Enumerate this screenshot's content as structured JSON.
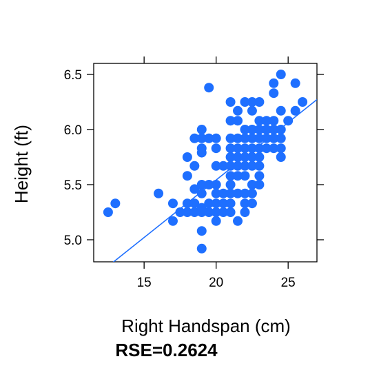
{
  "chart_data": {
    "type": "scatter",
    "xlabel": "Right Handspan (cm)",
    "ylabel": "Height (ft)",
    "xlim": [
      11.5,
      27.0
    ],
    "ylim": [
      4.8,
      6.6
    ],
    "xticks": [
      15,
      20,
      25
    ],
    "yticks": [
      5.0,
      5.5,
      6.0,
      6.5
    ],
    "ytick_labels": [
      "5.0",
      "5.5",
      "6.0",
      "6.5"
    ],
    "grid": false,
    "point_color": "#1E6FFF",
    "line_color": "#1E6FFF",
    "fit_line": {
      "x": [
        12.0,
        27.0
      ],
      "y": [
        4.708,
        6.272
      ]
    },
    "points": [
      [
        12.5,
        5.25
      ],
      [
        13.0,
        5.33
      ],
      [
        16.0,
        5.42
      ],
      [
        17.0,
        5.33
      ],
      [
        17.0,
        5.17
      ],
      [
        17.5,
        5.25
      ],
      [
        18.0,
        5.75
      ],
      [
        18.0,
        5.58
      ],
      [
        18.0,
        5.33
      ],
      [
        18.0,
        5.25
      ],
      [
        18.5,
        5.92
      ],
      [
        18.5,
        5.67
      ],
      [
        18.5,
        5.46
      ],
      [
        18.5,
        5.33
      ],
      [
        18.5,
        5.25
      ],
      [
        19.0,
        6.0
      ],
      [
        19.0,
        5.92
      ],
      [
        19.0,
        5.83
      ],
      [
        19.0,
        5.79
      ],
      [
        19.0,
        5.5
      ],
      [
        19.0,
        5.42
      ],
      [
        19.0,
        5.29
      ],
      [
        19.0,
        5.25
      ],
      [
        19.0,
        5.08
      ],
      [
        19.0,
        4.92
      ],
      [
        19.5,
        6.38
      ],
      [
        19.5,
        5.92
      ],
      [
        19.5,
        5.5
      ],
      [
        19.5,
        5.33
      ],
      [
        19.5,
        5.25
      ],
      [
        20.0,
        5.92
      ],
      [
        20.0,
        5.83
      ],
      [
        20.0,
        5.67
      ],
      [
        20.0,
        5.5
      ],
      [
        20.0,
        5.42
      ],
      [
        20.0,
        5.33
      ],
      [
        20.0,
        5.25
      ],
      [
        20.0,
        5.17
      ],
      [
        20.5,
        5.67
      ],
      [
        20.5,
        5.42
      ],
      [
        20.5,
        5.33
      ],
      [
        20.5,
        5.25
      ],
      [
        21.0,
        6.25
      ],
      [
        21.0,
        6.08
      ],
      [
        21.0,
        5.92
      ],
      [
        21.0,
        5.83
      ],
      [
        21.0,
        5.75
      ],
      [
        21.0,
        5.67
      ],
      [
        21.0,
        5.58
      ],
      [
        21.0,
        5.5
      ],
      [
        21.0,
        5.42
      ],
      [
        21.0,
        5.33
      ],
      [
        21.0,
        5.25
      ],
      [
        21.5,
        6.17
      ],
      [
        21.5,
        6.08
      ],
      [
        21.5,
        5.92
      ],
      [
        21.5,
        5.83
      ],
      [
        21.5,
        5.75
      ],
      [
        21.5,
        5.67
      ],
      [
        21.5,
        5.58
      ],
      [
        21.5,
        5.42
      ],
      [
        21.5,
        5.17
      ],
      [
        22.0,
        6.25
      ],
      [
        22.0,
        6.0
      ],
      [
        22.0,
        5.92
      ],
      [
        22.0,
        5.83
      ],
      [
        22.0,
        5.75
      ],
      [
        22.0,
        5.67
      ],
      [
        22.0,
        5.58
      ],
      [
        22.0,
        5.42
      ],
      [
        22.0,
        5.33
      ],
      [
        22.0,
        5.25
      ],
      [
        22.5,
        6.25
      ],
      [
        22.5,
        6.17
      ],
      [
        22.5,
        6.0
      ],
      [
        22.5,
        5.92
      ],
      [
        22.5,
        5.83
      ],
      [
        22.5,
        5.75
      ],
      [
        22.5,
        5.67
      ],
      [
        22.5,
        5.5
      ],
      [
        22.5,
        5.42
      ],
      [
        22.5,
        5.33
      ],
      [
        23.0,
        6.25
      ],
      [
        23.0,
        6.08
      ],
      [
        23.0,
        6.0
      ],
      [
        23.0,
        5.92
      ],
      [
        23.0,
        5.83
      ],
      [
        23.0,
        5.75
      ],
      [
        23.0,
        5.67
      ],
      [
        23.0,
        5.58
      ],
      [
        23.0,
        5.5
      ],
      [
        23.5,
        6.08
      ],
      [
        23.5,
        6.0
      ],
      [
        23.5,
        5.92
      ],
      [
        23.5,
        5.83
      ],
      [
        24.0,
        6.42
      ],
      [
        24.0,
        6.33
      ],
      [
        24.0,
        6.08
      ],
      [
        24.0,
        6.0
      ],
      [
        24.0,
        5.92
      ],
      [
        24.0,
        5.83
      ],
      [
        24.5,
        6.5
      ],
      [
        24.5,
        6.17
      ],
      [
        24.5,
        6.0
      ],
      [
        24.5,
        5.92
      ],
      [
        24.5,
        5.83
      ],
      [
        24.5,
        5.75
      ],
      [
        25.0,
        6.08
      ],
      [
        25.5,
        6.42
      ],
      [
        25.5,
        6.17
      ],
      [
        26.0,
        6.25
      ]
    ]
  },
  "footer": {
    "rse_text": "RSE=0.2624"
  }
}
